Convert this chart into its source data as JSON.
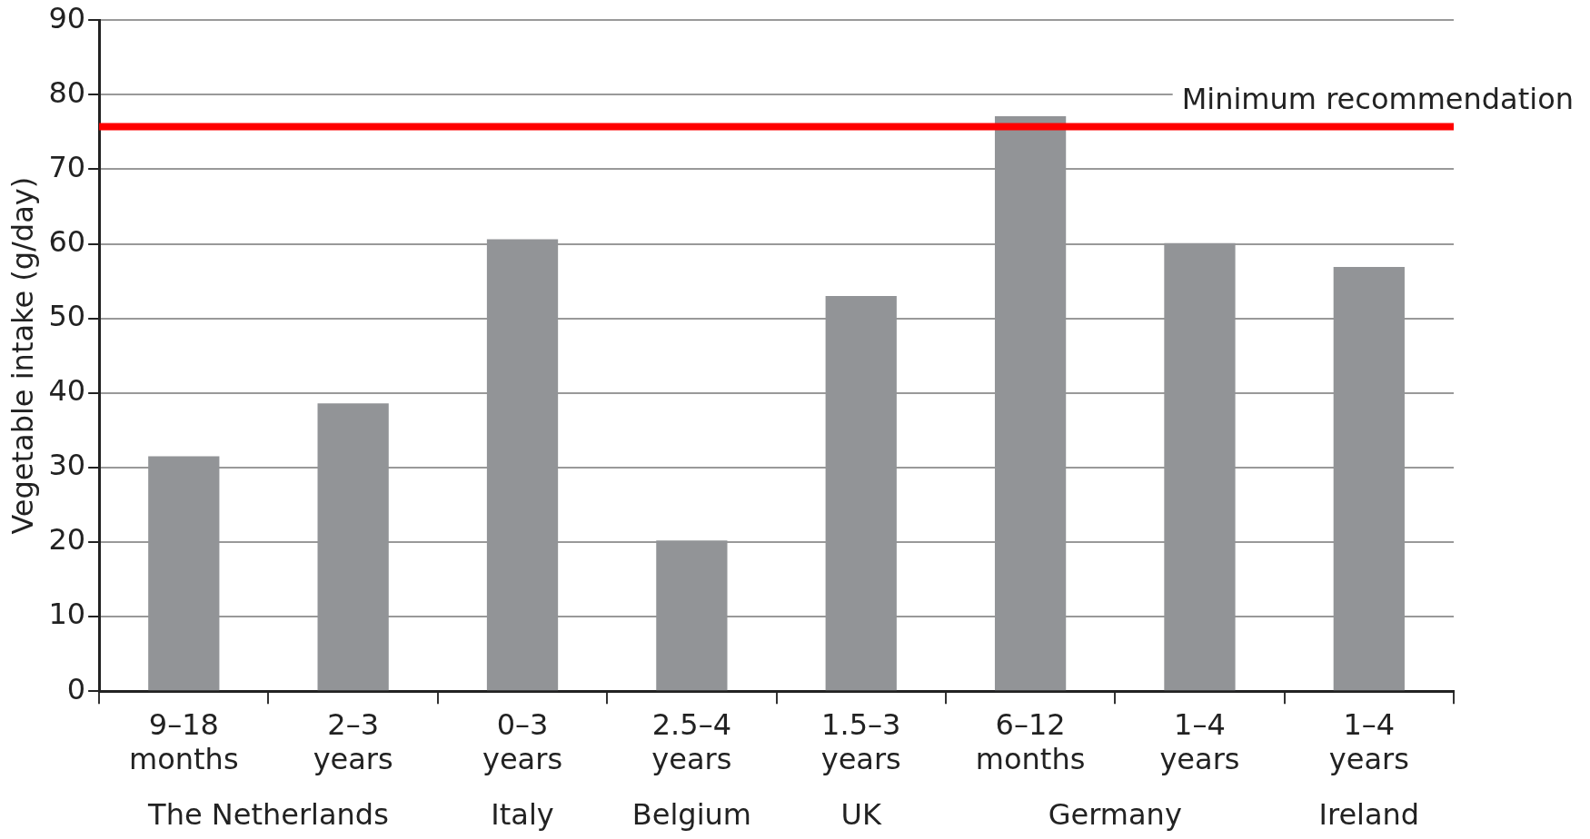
{
  "chart_data": {
    "type": "bar",
    "ylabel": "Vegetable intake (g/day)",
    "categories": [
      "9–18 months",
      "2–3 years",
      "0–3 years",
      "2.5–4 years",
      "1.5–3 years",
      "6–12 months",
      "1–4 years",
      "1–4 years"
    ],
    "values": [
      31.5,
      38.6,
      60.6,
      20.2,
      53.0,
      77.1,
      60.1,
      56.9
    ],
    "color": "#929497",
    "ylim": [
      0,
      90
    ],
    "yticks": [
      0,
      10,
      20,
      30,
      40,
      50,
      60,
      70,
      80,
      90
    ],
    "grid": "y",
    "legend": false,
    "ref_lines": [
      {
        "axis": "y",
        "value": 75.7,
        "label": "Minimum recommendation",
        "color": "#ff0000"
      }
    ],
    "annotations": [
      "The Netherlands",
      "Italy",
      "Belgium",
      "UK",
      "Germany",
      "Ireland"
    ]
  }
}
